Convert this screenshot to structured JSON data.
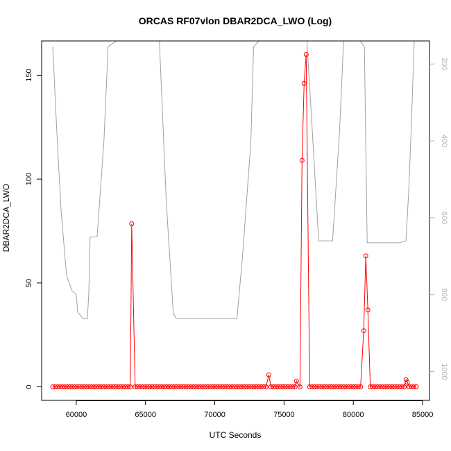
{
  "chart_data": {
    "type": "line",
    "title": "ORCAS RF07vlon DBAR2DCA_LWO (Log)",
    "xlabel": "UTC Seconds",
    "ylabel": "DBAR2DCA_LWO",
    "xlim": [
      57500,
      85500
    ],
    "ylim": [
      -6.5,
      166.5
    ],
    "x_ticks": [
      60000,
      65000,
      70000,
      75000,
      80000,
      85000
    ],
    "y_ticks": [
      0,
      50,
      100,
      150
    ],
    "right_axis": {
      "ylim": [
        1075,
        140
      ],
      "ticks": [
        200,
        400,
        600,
        800,
        1000
      ],
      "color": "#b0b0b0"
    },
    "grid": false,
    "legend": "none",
    "series": [
      {
        "color": "#ff0000",
        "marker": "open-circle",
        "x_start": 58300,
        "x_end": 84600,
        "x_step": 175,
        "baseline": 0,
        "values_nonzero": [
          {
            "x": 64000,
            "y": 78.5
          },
          {
            "x": 73900,
            "y": 5.8
          },
          {
            "x": 75900,
            "y": 2.8
          },
          {
            "x": 76300,
            "y": 109
          },
          {
            "x": 76450,
            "y": 146
          },
          {
            "x": 76600,
            "y": 160
          },
          {
            "x": 80750,
            "y": 27
          },
          {
            "x": 80900,
            "y": 63
          },
          {
            "x": 81050,
            "y": 37
          },
          {
            "x": 83800,
            "y": 3.5
          },
          {
            "x": 83900,
            "y": 2.2
          }
        ]
      },
      {
        "color": "#a0a0a0",
        "axis": "right",
        "x": [
          58300,
          58600,
          58900,
          59300,
          59700,
          60000,
          60100,
          60500,
          60800,
          60900,
          61000,
          61100,
          61500,
          61600,
          62000,
          62300,
          62900,
          63500,
          64000,
          65000,
          65500,
          66000,
          66500,
          67000,
          67200,
          68000,
          69000,
          70000,
          71000,
          71600,
          72000,
          72600,
          72800,
          73200,
          73800,
          74500,
          75000,
          75500,
          76200,
          76500,
          76650,
          77000,
          77500,
          77800,
          78200,
          78500,
          79000,
          79300,
          80000,
          80100,
          80500,
          80800,
          81000,
          81100,
          81500,
          82000,
          82500,
          83000,
          83300,
          83800,
          84000,
          84200,
          84400
        ],
        "y": [
          155,
          380,
          580,
          750,
          790,
          800,
          845,
          863,
          863,
          800,
          650,
          650,
          650,
          600,
          400,
          155,
          118,
          118,
          118,
          118,
          118,
          140,
          560,
          847,
          862,
          862,
          862,
          862,
          862,
          862,
          700,
          405,
          155,
          118,
          118,
          118,
          118,
          118,
          118,
          118,
          118,
          350,
          660,
          660,
          660,
          660,
          380,
          118,
          118,
          118,
          118,
          155,
          665,
          665,
          665,
          665,
          665,
          665,
          665,
          660,
          530,
          350,
          118
        ]
      }
    ]
  }
}
